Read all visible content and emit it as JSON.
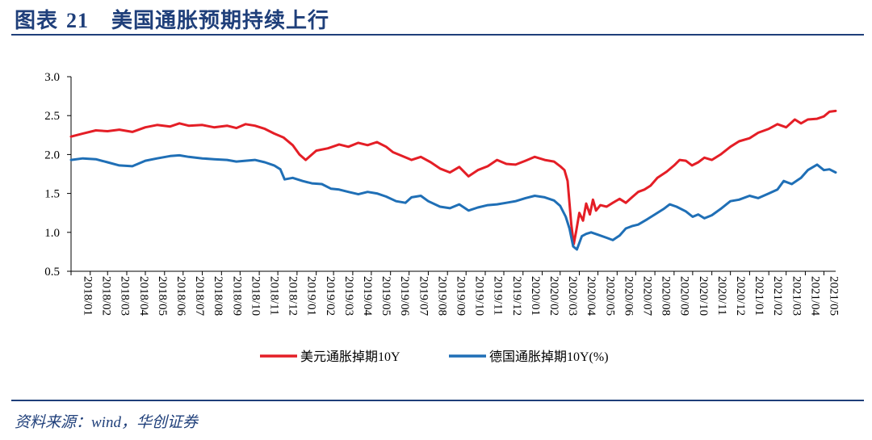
{
  "header": {
    "label": "图表",
    "number": "21",
    "title": "美国通胀预期持续上行"
  },
  "source": "资料来源：wind，华创证券",
  "chart_data": {
    "type": "line",
    "ylim": [
      0.5,
      3.0
    ],
    "yticks": [
      "3.0",
      "2.5",
      "2.0",
      "1.5",
      "1.0",
      "0.5"
    ],
    "ytick_values": [
      3.0,
      2.5,
      2.0,
      1.5,
      1.0,
      0.5
    ],
    "xlim": [
      "2018-01-01",
      "2021-05-20"
    ],
    "xtick_labels": [
      "2018/01",
      "2018/02",
      "2018/03",
      "2018/04",
      "2018/05",
      "2018/06",
      "2018/07",
      "2018/08",
      "2018/09",
      "2018/10",
      "2018/11",
      "2018/12",
      "2019/01",
      "2019/02",
      "2019/03",
      "2019/04",
      "2019/05",
      "2019/06",
      "2019/07",
      "2019/08",
      "2019/09",
      "2019/10",
      "2019/11",
      "2019/12",
      "2020/01",
      "2020/02",
      "2020/03",
      "2020/04",
      "2020/05",
      "2020/06",
      "2020/07",
      "2020/08",
      "2020/09",
      "2020/10",
      "2020/11",
      "2020/12",
      "2021/01",
      "2021/02",
      "2021/03",
      "2021/04",
      "2021/05"
    ],
    "legend_position": "bottom",
    "series": [
      {
        "name": "美元通胀掉期10Y",
        "color": "#e41e26",
        "points": [
          [
            "2018-01-01",
            2.23
          ],
          [
            "2018-01-20",
            2.27
          ],
          [
            "2018-02-10",
            2.31
          ],
          [
            "2018-03-01",
            2.3
          ],
          [
            "2018-03-20",
            2.32
          ],
          [
            "2018-04-10",
            2.29
          ],
          [
            "2018-05-01",
            2.35
          ],
          [
            "2018-05-20",
            2.38
          ],
          [
            "2018-06-10",
            2.36
          ],
          [
            "2018-06-25",
            2.4
          ],
          [
            "2018-07-10",
            2.37
          ],
          [
            "2018-08-01",
            2.38
          ],
          [
            "2018-08-20",
            2.35
          ],
          [
            "2018-09-10",
            2.37
          ],
          [
            "2018-09-25",
            2.34
          ],
          [
            "2018-10-10",
            2.39
          ],
          [
            "2018-10-25",
            2.37
          ],
          [
            "2018-11-10",
            2.33
          ],
          [
            "2018-11-25",
            2.27
          ],
          [
            "2018-12-10",
            2.22
          ],
          [
            "2018-12-25",
            2.12
          ],
          [
            "2019-01-05",
            2.0
          ],
          [
            "2019-01-15",
            1.93
          ],
          [
            "2019-02-01",
            2.05
          ],
          [
            "2019-02-20",
            2.08
          ],
          [
            "2019-03-10",
            2.13
          ],
          [
            "2019-03-25",
            2.1
          ],
          [
            "2019-04-10",
            2.15
          ],
          [
            "2019-04-25",
            2.12
          ],
          [
            "2019-05-10",
            2.16
          ],
          [
            "2019-05-25",
            2.1
          ],
          [
            "2019-06-05",
            2.03
          ],
          [
            "2019-06-20",
            1.98
          ],
          [
            "2019-07-05",
            1.93
          ],
          [
            "2019-07-20",
            1.97
          ],
          [
            "2019-08-05",
            1.9
          ],
          [
            "2019-08-20",
            1.82
          ],
          [
            "2019-09-05",
            1.77
          ],
          [
            "2019-09-20",
            1.84
          ],
          [
            "2019-10-05",
            1.72
          ],
          [
            "2019-10-20",
            1.8
          ],
          [
            "2019-11-05",
            1.85
          ],
          [
            "2019-11-20",
            1.93
          ],
          [
            "2019-12-05",
            1.88
          ],
          [
            "2019-12-20",
            1.87
          ],
          [
            "2020-01-05",
            1.92
          ],
          [
            "2020-01-20",
            1.97
          ],
          [
            "2020-02-05",
            1.93
          ],
          [
            "2020-02-20",
            1.91
          ],
          [
            "2020-03-01",
            1.85
          ],
          [
            "2020-03-08",
            1.8
          ],
          [
            "2020-03-13",
            1.66
          ],
          [
            "2020-03-19",
            1.1
          ],
          [
            "2020-03-23",
            0.85
          ],
          [
            "2020-03-27",
            1.02
          ],
          [
            "2020-04-01",
            1.25
          ],
          [
            "2020-04-07",
            1.15
          ],
          [
            "2020-04-12",
            1.37
          ],
          [
            "2020-04-18",
            1.23
          ],
          [
            "2020-04-23",
            1.42
          ],
          [
            "2020-04-28",
            1.28
          ],
          [
            "2020-05-05",
            1.35
          ],
          [
            "2020-05-15",
            1.33
          ],
          [
            "2020-05-25",
            1.38
          ],
          [
            "2020-06-05",
            1.43
          ],
          [
            "2020-06-15",
            1.38
          ],
          [
            "2020-06-25",
            1.45
          ],
          [
            "2020-07-05",
            1.52
          ],
          [
            "2020-07-15",
            1.55
          ],
          [
            "2020-07-25",
            1.6
          ],
          [
            "2020-08-05",
            1.7
          ],
          [
            "2020-08-20",
            1.78
          ],
          [
            "2020-09-01",
            1.86
          ],
          [
            "2020-09-10",
            1.93
          ],
          [
            "2020-09-20",
            1.92
          ],
          [
            "2020-09-30",
            1.86
          ],
          [
            "2020-10-10",
            1.9
          ],
          [
            "2020-10-20",
            1.96
          ],
          [
            "2020-11-01",
            1.93
          ],
          [
            "2020-11-15",
            2.0
          ],
          [
            "2020-12-01",
            2.1
          ],
          [
            "2020-12-15",
            2.17
          ],
          [
            "2021-01-01",
            2.21
          ],
          [
            "2021-01-15",
            2.28
          ],
          [
            "2021-02-01",
            2.33
          ],
          [
            "2021-02-15",
            2.39
          ],
          [
            "2021-03-01",
            2.35
          ],
          [
            "2021-03-15",
            2.45
          ],
          [
            "2021-03-25",
            2.4
          ],
          [
            "2021-04-05",
            2.45
          ],
          [
            "2021-04-20",
            2.46
          ],
          [
            "2021-05-01",
            2.49
          ],
          [
            "2021-05-10",
            2.55
          ],
          [
            "2021-05-20",
            2.56
          ]
        ]
      },
      {
        "name": "德国通胀掉期10Y(%)",
        "color": "#1f6fb6",
        "points": [
          [
            "2018-01-01",
            1.93
          ],
          [
            "2018-01-20",
            1.95
          ],
          [
            "2018-02-10",
            1.94
          ],
          [
            "2018-03-01",
            1.9
          ],
          [
            "2018-03-20",
            1.86
          ],
          [
            "2018-04-10",
            1.85
          ],
          [
            "2018-05-01",
            1.92
          ],
          [
            "2018-05-20",
            1.95
          ],
          [
            "2018-06-10",
            1.98
          ],
          [
            "2018-06-25",
            1.99
          ],
          [
            "2018-07-10",
            1.97
          ],
          [
            "2018-08-01",
            1.95
          ],
          [
            "2018-08-20",
            1.94
          ],
          [
            "2018-09-10",
            1.93
          ],
          [
            "2018-09-25",
            1.91
          ],
          [
            "2018-10-10",
            1.92
          ],
          [
            "2018-10-25",
            1.93
          ],
          [
            "2018-11-10",
            1.9
          ],
          [
            "2018-11-25",
            1.86
          ],
          [
            "2018-12-05",
            1.81
          ],
          [
            "2018-12-12",
            1.68
          ],
          [
            "2018-12-25",
            1.7
          ],
          [
            "2019-01-10",
            1.66
          ],
          [
            "2019-01-25",
            1.63
          ],
          [
            "2019-02-10",
            1.62
          ],
          [
            "2019-02-25",
            1.56
          ],
          [
            "2019-03-10",
            1.55
          ],
          [
            "2019-03-25",
            1.52
          ],
          [
            "2019-04-10",
            1.49
          ],
          [
            "2019-04-25",
            1.52
          ],
          [
            "2019-05-10",
            1.5
          ],
          [
            "2019-05-25",
            1.46
          ],
          [
            "2019-06-10",
            1.4
          ],
          [
            "2019-06-25",
            1.38
          ],
          [
            "2019-07-05",
            1.45
          ],
          [
            "2019-07-20",
            1.47
          ],
          [
            "2019-08-01",
            1.4
          ],
          [
            "2019-08-20",
            1.33
          ],
          [
            "2019-09-05",
            1.31
          ],
          [
            "2019-09-20",
            1.36
          ],
          [
            "2019-10-05",
            1.28
          ],
          [
            "2019-10-20",
            1.32
          ],
          [
            "2019-11-05",
            1.35
          ],
          [
            "2019-11-20",
            1.36
          ],
          [
            "2019-12-05",
            1.38
          ],
          [
            "2019-12-20",
            1.4
          ],
          [
            "2020-01-05",
            1.44
          ],
          [
            "2020-01-20",
            1.47
          ],
          [
            "2020-02-05",
            1.45
          ],
          [
            "2020-02-20",
            1.41
          ],
          [
            "2020-03-01",
            1.34
          ],
          [
            "2020-03-10",
            1.2
          ],
          [
            "2020-03-16",
            1.05
          ],
          [
            "2020-03-22",
            0.82
          ],
          [
            "2020-03-28",
            0.78
          ],
          [
            "2020-04-05",
            0.95
          ],
          [
            "2020-04-12",
            0.98
          ],
          [
            "2020-04-20",
            1.0
          ],
          [
            "2020-05-01",
            0.97
          ],
          [
            "2020-05-15",
            0.93
          ],
          [
            "2020-05-25",
            0.9
          ],
          [
            "2020-06-05",
            0.96
          ],
          [
            "2020-06-15",
            1.05
          ],
          [
            "2020-06-25",
            1.08
          ],
          [
            "2020-07-05",
            1.1
          ],
          [
            "2020-07-20",
            1.17
          ],
          [
            "2020-08-01",
            1.23
          ],
          [
            "2020-08-15",
            1.3
          ],
          [
            "2020-08-25",
            1.36
          ],
          [
            "2020-09-05",
            1.33
          ],
          [
            "2020-09-20",
            1.27
          ],
          [
            "2020-10-01",
            1.2
          ],
          [
            "2020-10-10",
            1.23
          ],
          [
            "2020-10-20",
            1.18
          ],
          [
            "2020-11-01",
            1.22
          ],
          [
            "2020-11-15",
            1.3
          ],
          [
            "2020-12-01",
            1.4
          ],
          [
            "2020-12-15",
            1.42
          ],
          [
            "2021-01-01",
            1.47
          ],
          [
            "2021-01-15",
            1.44
          ],
          [
            "2021-02-01",
            1.5
          ],
          [
            "2021-02-15",
            1.55
          ],
          [
            "2021-02-25",
            1.66
          ],
          [
            "2021-03-10",
            1.62
          ],
          [
            "2021-03-25",
            1.7
          ],
          [
            "2021-04-05",
            1.8
          ],
          [
            "2021-04-20",
            1.87
          ],
          [
            "2021-05-01",
            1.8
          ],
          [
            "2021-05-10",
            1.81
          ],
          [
            "2021-05-20",
            1.77
          ]
        ]
      }
    ]
  }
}
